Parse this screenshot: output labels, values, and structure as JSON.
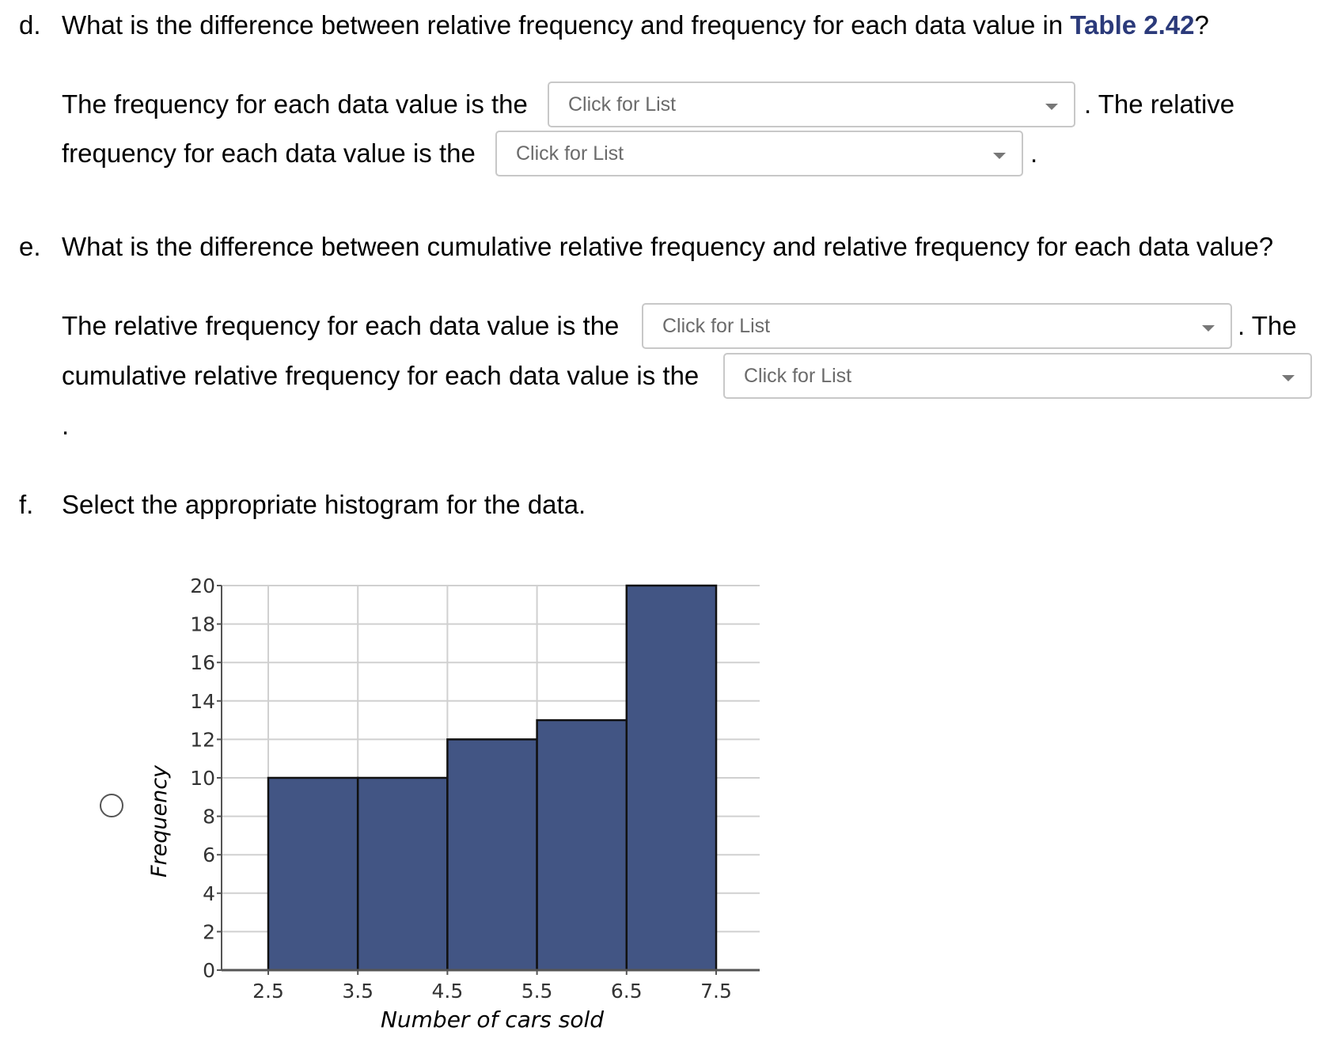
{
  "part_d": {
    "letter": "d.",
    "question_before": "What is the difference between relative frequency and frequency for each data value in ",
    "link_text": "Table 2.42",
    "question_after": "?",
    "s1_prefix": "The frequency for each data value is the",
    "dropdown1": "Click for List",
    "s1_suffix": ". The relative",
    "s2_prefix": "frequency for each data value is the",
    "dropdown2": "Click for List",
    "s2_suffix": "."
  },
  "part_e": {
    "letter": "e.",
    "question": "What is the difference between cumulative relative frequency and relative frequency for each data value?",
    "s1_prefix": "The relative frequency for each data value is the",
    "dropdown1": "Click for List",
    "s1_suffix": ". The",
    "s2_prefix": "cumulative relative frequency for each data value is the",
    "dropdown2": "Click for List",
    "s2_suffix": "."
  },
  "part_f": {
    "letter": "f.",
    "question": "Select the appropriate histogram for the data."
  },
  "chart_data": {
    "type": "bar",
    "bin_edges": [
      2.5,
      3.5,
      4.5,
      5.5,
      6.5,
      7.5
    ],
    "values": [
      10,
      10,
      12,
      13,
      20
    ],
    "xlabel": "Number of cars sold",
    "ylabel": "Frequency",
    "ylim": [
      0,
      20
    ],
    "yticks": [
      0,
      2,
      4,
      6,
      8,
      10,
      12,
      14,
      16,
      18,
      20
    ],
    "xticks": [
      "2.5",
      "3.5",
      "4.5",
      "5.5",
      "6.5",
      "7.5"
    ],
    "grid": true,
    "bar_color": "#425584"
  }
}
